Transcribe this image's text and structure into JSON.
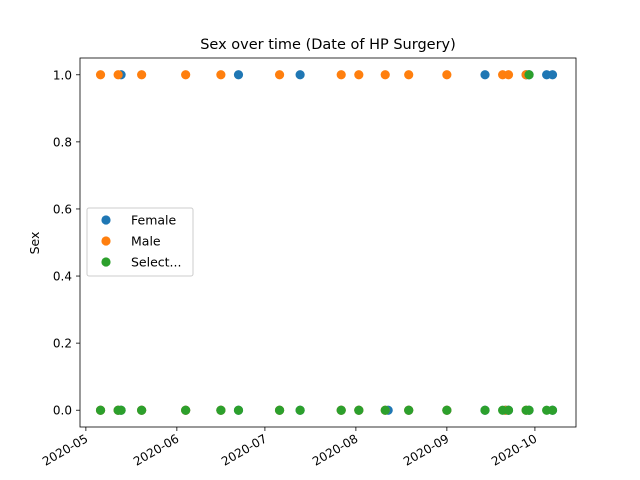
{
  "chart_data": {
    "type": "scatter",
    "title": "Sex over time (Date of HP Surgery)",
    "xlabel": "",
    "ylabel": "Sex",
    "x_ticks": [
      "2020-05",
      "2020-06",
      "2020-07",
      "2020-08",
      "2020-09",
      "2020-10"
    ],
    "y_ticks": [
      "0.0",
      "0.2",
      "0.4",
      "0.6",
      "0.8",
      "1.0"
    ],
    "xlim": [
      "2020-04-29",
      "2020-10-15"
    ],
    "ylim": [
      -0.05,
      1.05
    ],
    "grid": false,
    "legend_position": "center-left",
    "series": [
      {
        "name": "Female",
        "color": "#1f77b4",
        "points": [
          {
            "x": "2020-05-06",
            "y": 0
          },
          {
            "x": "2020-05-12",
            "y": 0
          },
          {
            "x": "2020-05-13",
            "y": 1
          },
          {
            "x": "2020-05-13",
            "y": 0
          },
          {
            "x": "2020-05-20",
            "y": 0
          },
          {
            "x": "2020-06-04",
            "y": 0
          },
          {
            "x": "2020-06-16",
            "y": 0
          },
          {
            "x": "2020-06-22",
            "y": 1
          },
          {
            "x": "2020-06-22",
            "y": 0
          },
          {
            "x": "2020-07-06",
            "y": 0
          },
          {
            "x": "2020-07-13",
            "y": 1
          },
          {
            "x": "2020-07-13",
            "y": 0
          },
          {
            "x": "2020-07-27",
            "y": 0
          },
          {
            "x": "2020-08-02",
            "y": 0
          },
          {
            "x": "2020-08-12",
            "y": 0
          },
          {
            "x": "2020-08-19",
            "y": 0
          },
          {
            "x": "2020-09-01",
            "y": 0
          },
          {
            "x": "2020-09-14",
            "y": 1
          },
          {
            "x": "2020-09-14",
            "y": 0
          },
          {
            "x": "2020-09-21",
            "y": 0
          },
          {
            "x": "2020-09-22",
            "y": 0
          },
          {
            "x": "2020-09-28",
            "y": 1
          },
          {
            "x": "2020-09-29",
            "y": 1
          },
          {
            "x": "2020-09-29",
            "y": 0
          },
          {
            "x": "2020-10-05",
            "y": 1
          },
          {
            "x": "2020-10-07",
            "y": 1
          },
          {
            "x": "2020-10-07",
            "y": 0
          }
        ]
      },
      {
        "name": "Male",
        "color": "#ff7f0e",
        "points": [
          {
            "x": "2020-05-06",
            "y": 1
          },
          {
            "x": "2020-05-12",
            "y": 1
          },
          {
            "x": "2020-05-20",
            "y": 1
          },
          {
            "x": "2020-06-04",
            "y": 1
          },
          {
            "x": "2020-06-16",
            "y": 1
          },
          {
            "x": "2020-07-06",
            "y": 1
          },
          {
            "x": "2020-07-27",
            "y": 1
          },
          {
            "x": "2020-08-02",
            "y": 1
          },
          {
            "x": "2020-08-11",
            "y": 1
          },
          {
            "x": "2020-08-19",
            "y": 1
          },
          {
            "x": "2020-09-01",
            "y": 1
          },
          {
            "x": "2020-09-20",
            "y": 1
          },
          {
            "x": "2020-09-22",
            "y": 1
          },
          {
            "x": "2020-09-28",
            "y": 1
          },
          {
            "x": "2020-05-06",
            "y": 0
          },
          {
            "x": "2020-05-12",
            "y": 0
          },
          {
            "x": "2020-05-20",
            "y": 0
          },
          {
            "x": "2020-06-04",
            "y": 0
          },
          {
            "x": "2020-06-16",
            "y": 0
          },
          {
            "x": "2020-07-06",
            "y": 0
          },
          {
            "x": "2020-07-27",
            "y": 0
          },
          {
            "x": "2020-08-02",
            "y": 0
          },
          {
            "x": "2020-08-11",
            "y": 0
          },
          {
            "x": "2020-08-19",
            "y": 0
          },
          {
            "x": "2020-09-01",
            "y": 0
          },
          {
            "x": "2020-09-21",
            "y": 0
          },
          {
            "x": "2020-09-28",
            "y": 0
          }
        ]
      },
      {
        "name": "Select...",
        "color": "#2ca02c",
        "points": [
          {
            "x": "2020-09-29",
            "y": 1
          },
          {
            "x": "2020-05-06",
            "y": 0
          },
          {
            "x": "2020-05-12",
            "y": 0
          },
          {
            "x": "2020-05-13",
            "y": 0
          },
          {
            "x": "2020-05-20",
            "y": 0
          },
          {
            "x": "2020-06-04",
            "y": 0
          },
          {
            "x": "2020-06-16",
            "y": 0
          },
          {
            "x": "2020-06-22",
            "y": 0
          },
          {
            "x": "2020-07-06",
            "y": 0
          },
          {
            "x": "2020-07-13",
            "y": 0
          },
          {
            "x": "2020-07-27",
            "y": 0
          },
          {
            "x": "2020-08-02",
            "y": 0
          },
          {
            "x": "2020-08-11",
            "y": 0
          },
          {
            "x": "2020-08-19",
            "y": 0
          },
          {
            "x": "2020-09-01",
            "y": 0
          },
          {
            "x": "2020-09-14",
            "y": 0
          },
          {
            "x": "2020-09-20",
            "y": 0
          },
          {
            "x": "2020-09-22",
            "y": 0
          },
          {
            "x": "2020-09-28",
            "y": 0
          },
          {
            "x": "2020-09-29",
            "y": 0
          },
          {
            "x": "2020-10-05",
            "y": 0
          },
          {
            "x": "2020-10-07",
            "y": 0
          }
        ]
      }
    ]
  }
}
